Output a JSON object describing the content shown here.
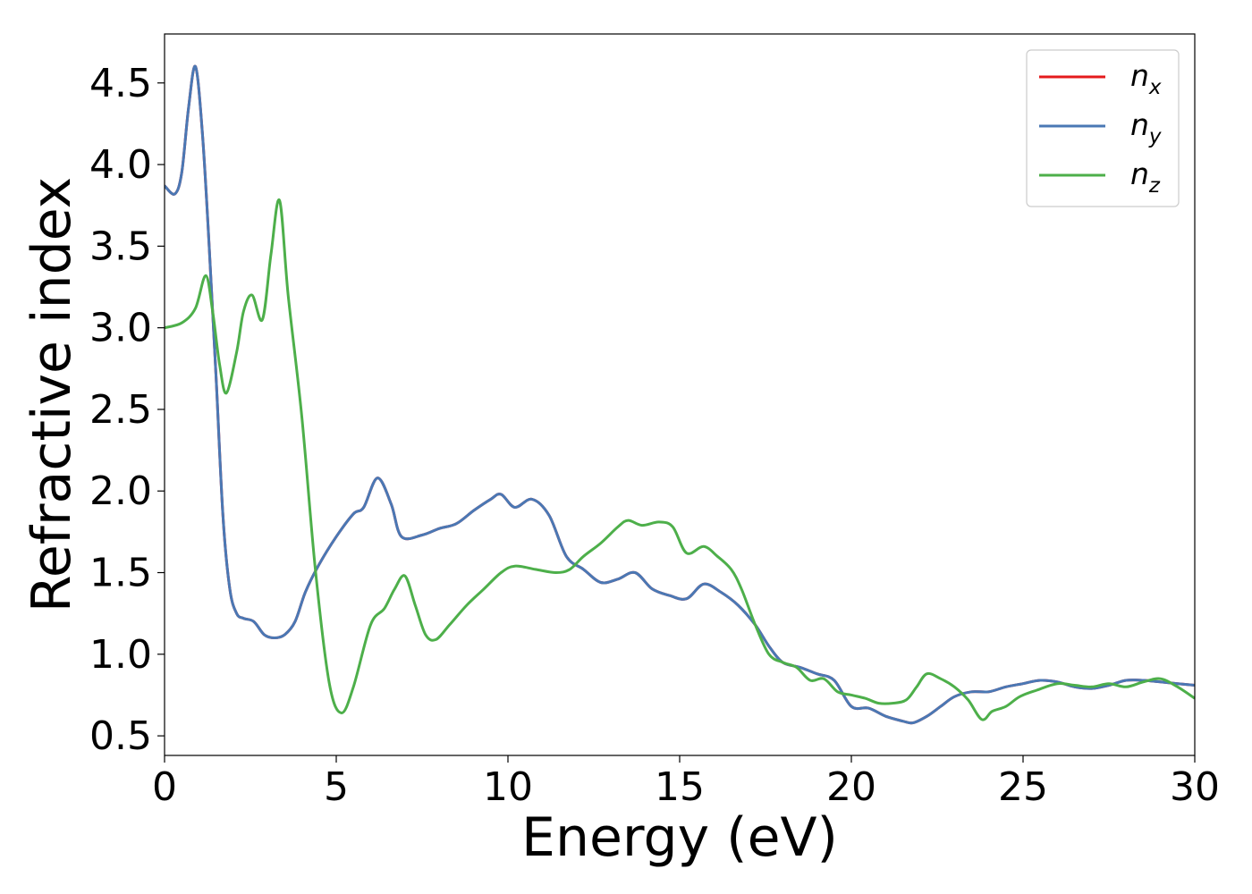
{
  "chart_data": {
    "type": "line",
    "title": "",
    "xlabel": "Energy (eV)",
    "ylabel": "Refractive index",
    "xlim": [
      0,
      30
    ],
    "ylim": [
      0.38,
      4.8
    ],
    "xticks": [
      0,
      5,
      10,
      15,
      20,
      25,
      30
    ],
    "xtick_labels": [
      "0",
      "5",
      "10",
      "15",
      "20",
      "25",
      "30"
    ],
    "yticks": [
      0.5,
      1.0,
      1.5,
      2.0,
      2.5,
      3.0,
      3.5,
      4.0,
      4.5
    ],
    "ytick_labels": [
      "0.5",
      "1.0",
      "1.5",
      "2.0",
      "2.5",
      "3.0",
      "3.5",
      "4.0",
      "4.5"
    ],
    "grid": false,
    "legend_position": "top-right",
    "series": [
      {
        "name": "n",
        "subscript": "x",
        "color": "#e41a1c",
        "x": [
          0,
          0.3,
          0.5,
          0.7,
          0.9,
          1.1,
          1.3,
          1.5,
          1.7,
          1.9,
          2.1,
          2.3,
          2.6,
          2.9,
          3.2,
          3.5,
          3.8,
          4.1,
          4.5,
          5.0,
          5.5,
          5.8,
          6.2,
          6.6,
          6.9,
          7.5,
          8.0,
          8.5,
          9.0,
          9.5,
          9.8,
          10.2,
          10.7,
          11.2,
          11.7,
          12.2,
          12.7,
          13.2,
          13.7,
          14.2,
          14.7,
          15.2,
          15.7,
          16.2,
          16.7,
          17.2,
          17.6,
          18.0,
          18.5,
          19.0,
          19.5,
          20.0,
          20.5,
          21.0,
          21.5,
          21.8,
          22.2,
          22.6,
          23.0,
          23.5,
          24.0,
          24.5,
          25.0,
          25.5,
          26.0,
          26.5,
          27.0,
          27.5,
          28.0,
          28.5,
          29.0,
          29.5,
          30.0
        ],
        "y": [
          3.87,
          3.82,
          3.95,
          4.35,
          4.6,
          4.2,
          3.5,
          2.7,
          1.85,
          1.4,
          1.25,
          1.22,
          1.2,
          1.12,
          1.1,
          1.12,
          1.2,
          1.38,
          1.55,
          1.72,
          1.86,
          1.9,
          2.08,
          1.92,
          1.72,
          1.73,
          1.77,
          1.8,
          1.88,
          1.95,
          1.98,
          1.9,
          1.95,
          1.85,
          1.6,
          1.52,
          1.44,
          1.46,
          1.5,
          1.4,
          1.36,
          1.34,
          1.43,
          1.38,
          1.3,
          1.18,
          1.05,
          0.95,
          0.92,
          0.88,
          0.84,
          0.68,
          0.67,
          0.62,
          0.59,
          0.58,
          0.62,
          0.68,
          0.74,
          0.77,
          0.77,
          0.8,
          0.82,
          0.84,
          0.83,
          0.8,
          0.79,
          0.81,
          0.84,
          0.84,
          0.83,
          0.82,
          0.81
        ]
      },
      {
        "name": "n",
        "subscript": "y",
        "color": "#4a78b4",
        "x": [
          0,
          0.3,
          0.5,
          0.7,
          0.9,
          1.1,
          1.3,
          1.5,
          1.7,
          1.9,
          2.1,
          2.3,
          2.6,
          2.9,
          3.2,
          3.5,
          3.8,
          4.1,
          4.5,
          5.0,
          5.5,
          5.8,
          6.2,
          6.6,
          6.9,
          7.5,
          8.0,
          8.5,
          9.0,
          9.5,
          9.8,
          10.2,
          10.7,
          11.2,
          11.7,
          12.2,
          12.7,
          13.2,
          13.7,
          14.2,
          14.7,
          15.2,
          15.7,
          16.2,
          16.7,
          17.2,
          17.6,
          18.0,
          18.5,
          19.0,
          19.5,
          20.0,
          20.5,
          21.0,
          21.5,
          21.8,
          22.2,
          22.6,
          23.0,
          23.5,
          24.0,
          24.5,
          25.0,
          25.5,
          26.0,
          26.5,
          27.0,
          27.5,
          28.0,
          28.5,
          29.0,
          29.5,
          30.0
        ],
        "y": [
          3.87,
          3.82,
          3.95,
          4.35,
          4.6,
          4.2,
          3.5,
          2.7,
          1.85,
          1.4,
          1.25,
          1.22,
          1.2,
          1.12,
          1.1,
          1.12,
          1.2,
          1.38,
          1.55,
          1.72,
          1.86,
          1.9,
          2.08,
          1.92,
          1.72,
          1.73,
          1.77,
          1.8,
          1.88,
          1.95,
          1.98,
          1.9,
          1.95,
          1.85,
          1.6,
          1.52,
          1.44,
          1.46,
          1.5,
          1.4,
          1.36,
          1.34,
          1.43,
          1.38,
          1.3,
          1.18,
          1.05,
          0.95,
          0.92,
          0.88,
          0.84,
          0.68,
          0.67,
          0.62,
          0.59,
          0.58,
          0.62,
          0.68,
          0.74,
          0.77,
          0.77,
          0.8,
          0.82,
          0.84,
          0.83,
          0.8,
          0.79,
          0.81,
          0.84,
          0.84,
          0.83,
          0.82,
          0.81
        ]
      },
      {
        "name": "n",
        "subscript": "z",
        "color": "#4daf4a",
        "x": [
          0,
          0.5,
          0.9,
          1.2,
          1.4,
          1.6,
          1.8,
          2.1,
          2.3,
          2.55,
          2.85,
          3.1,
          3.35,
          3.6,
          4.0,
          4.4,
          4.8,
          5.15,
          5.5,
          6.0,
          6.4,
          6.7,
          7.0,
          7.3,
          7.6,
          7.9,
          8.3,
          8.8,
          9.3,
          9.8,
          10.2,
          10.8,
          11.4,
          11.8,
          12.2,
          12.7,
          13.2,
          13.5,
          13.9,
          14.4,
          14.8,
          15.2,
          15.7,
          16.1,
          16.5,
          16.8,
          17.2,
          17.6,
          18.0,
          18.4,
          18.8,
          19.2,
          19.6,
          20.0,
          20.4,
          20.8,
          21.2,
          21.6,
          21.9,
          22.2,
          22.6,
          23.0,
          23.4,
          23.8,
          24.1,
          24.5,
          24.9,
          25.4,
          26.0,
          26.5,
          27.0,
          27.5,
          28.0,
          28.5,
          29.0,
          29.5,
          30.0
        ],
        "y": [
          3.0,
          3.03,
          3.12,
          3.32,
          3.1,
          2.78,
          2.6,
          2.85,
          3.1,
          3.2,
          3.05,
          3.45,
          3.78,
          3.2,
          2.45,
          1.5,
          0.82,
          0.64,
          0.8,
          1.18,
          1.28,
          1.4,
          1.48,
          1.3,
          1.12,
          1.09,
          1.18,
          1.3,
          1.4,
          1.5,
          1.54,
          1.52,
          1.5,
          1.52,
          1.6,
          1.68,
          1.78,
          1.82,
          1.79,
          1.81,
          1.78,
          1.62,
          1.66,
          1.6,
          1.52,
          1.4,
          1.18,
          1.0,
          0.95,
          0.92,
          0.84,
          0.85,
          0.77,
          0.75,
          0.73,
          0.7,
          0.7,
          0.72,
          0.8,
          0.88,
          0.85,
          0.8,
          0.72,
          0.6,
          0.65,
          0.68,
          0.74,
          0.78,
          0.82,
          0.81,
          0.8,
          0.82,
          0.8,
          0.83,
          0.85,
          0.8,
          0.73
        ]
      }
    ]
  }
}
